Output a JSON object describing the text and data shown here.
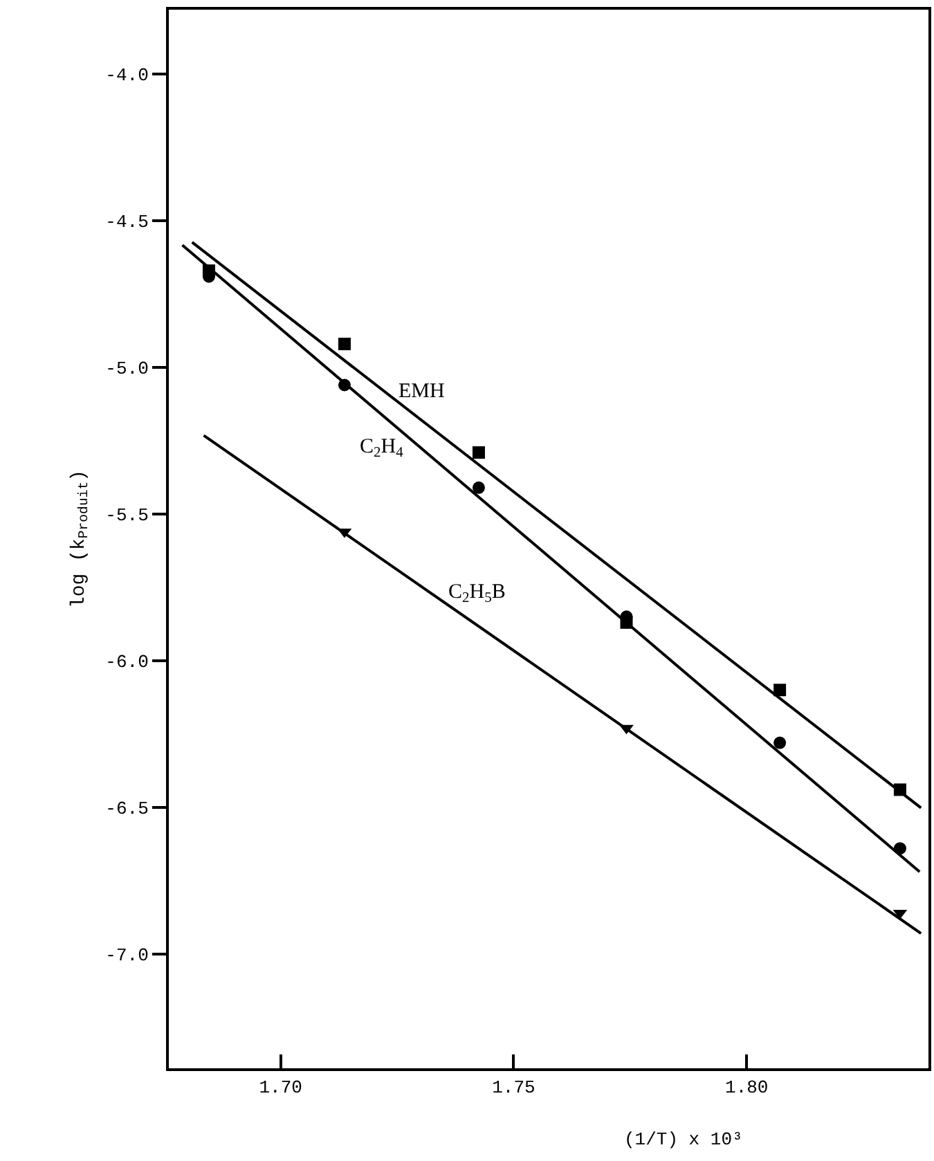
{
  "chart_data": {
    "type": "scatter",
    "xlabel": "(1/T) x 10³",
    "ylabel": "log (k$_{Produit}$)",
    "xlim": [
      1.676,
      1.839
    ],
    "xticks": [
      {
        "value": 1.7,
        "label": "1.70"
      },
      {
        "value": 1.75,
        "label": "1.75"
      },
      {
        "value": 1.8,
        "label": "1.80"
      }
    ],
    "ylim": [
      -7.39,
      -3.78
    ],
    "yticks": [
      {
        "value": -4,
        "label": "-4.0"
      },
      {
        "value": -4.5,
        "label": "-4.5"
      },
      {
        "value": -5,
        "label": "-5.0"
      },
      {
        "value": -5.5,
        "label": "-5.5"
      },
      {
        "value": -6,
        "label": "-6.0"
      },
      {
        "value": -6.5,
        "label": "-6.5"
      },
      {
        "value": -7,
        "label": "-7.0"
      }
    ],
    "grid": false,
    "legend": false,
    "series": [
      {
        "marker": "square",
        "color": "#000000",
        "x": [
          1.6846,
          1.7137,
          1.7425,
          1.7742,
          1.8071,
          1.8329
        ],
        "values": [
          -4.67,
          -4.92,
          -5.29,
          -5.87,
          -6.1,
          -6.44
        ]
      },
      {
        "marker": "circle",
        "color": "#000000",
        "x": [
          1.6846,
          1.7137,
          1.7425,
          1.7742,
          1.8071,
          1.8329
        ],
        "values": [
          -4.69,
          -5.06,
          -5.41,
          -5.85,
          -6.28,
          -6.64
        ]
      },
      {
        "marker": "triangle",
        "color": "#000000",
        "x": [
          1.7137,
          1.7742,
          1.8329
        ],
        "values": [
          -5.56,
          -6.23,
          -6.86
        ]
      },
      {
        "type": "line",
        "name": "EMH",
        "line_style": "solid",
        "color": "#000000",
        "x": [
          1.681,
          1.8374
        ],
        "values": [
          -4.573,
          -6.502
        ]
      },
      {
        "type": "line",
        "name": "C$_{2}$H$_{4}$",
        "line_style": "solid",
        "color": "#000000",
        "x": [
          1.6789,
          1.8371
        ],
        "values": [
          -4.583,
          -6.72
        ]
      },
      {
        "type": "line",
        "name": "C$_{2}$H$_{5}$B",
        "line_style": "solid",
        "color": "#000000",
        "x": [
          1.6835,
          1.8374
        ],
        "values": [
          -5.232,
          -6.93
        ]
      }
    ]
  }
}
